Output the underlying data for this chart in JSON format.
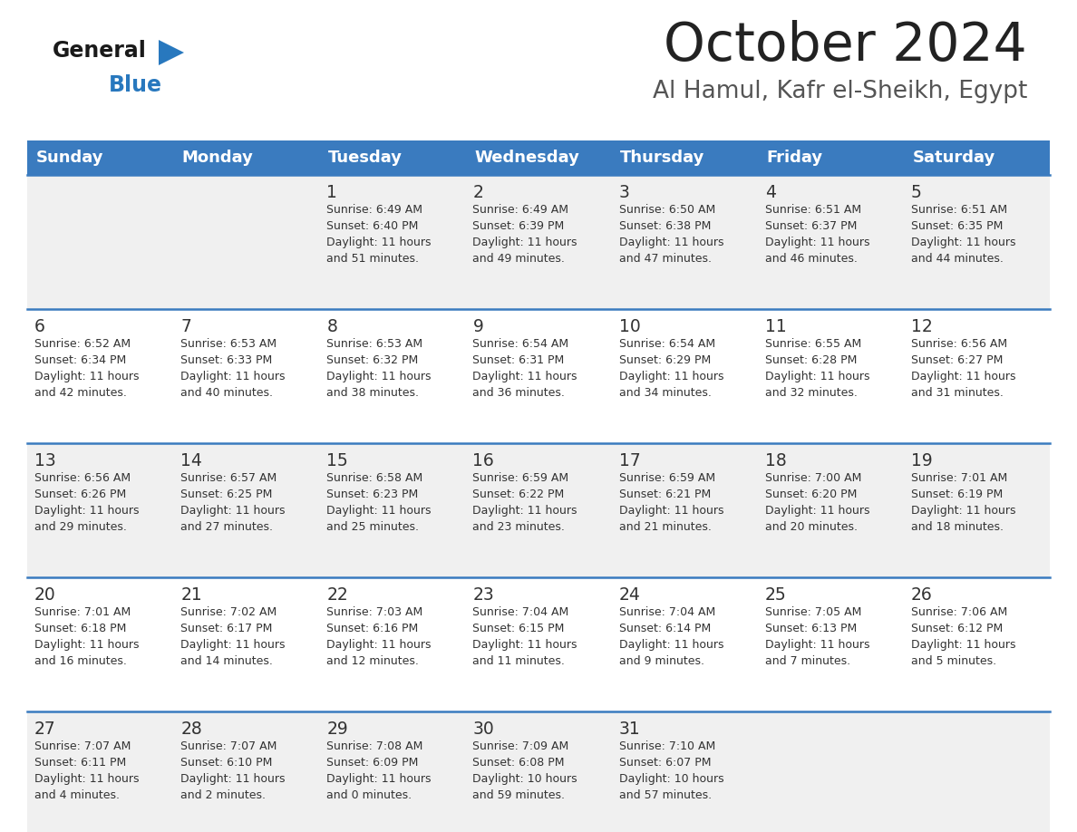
{
  "title": "October 2024",
  "subtitle": "Al Hamul, Kafr el-Sheikh, Egypt",
  "days_of_week": [
    "Sunday",
    "Monday",
    "Tuesday",
    "Wednesday",
    "Thursday",
    "Friday",
    "Saturday"
  ],
  "header_bg": "#3a7bbf",
  "header_text": "#ffffff",
  "row_bg_odd": "#f0f0f0",
  "row_bg_even": "#ffffff",
  "cell_text_color": "#333333",
  "divider_color": "#3a7bbf",
  "title_color": "#222222",
  "subtitle_color": "#555555",
  "logo_general_color": "#1a1a1a",
  "logo_blue_color": "#2878be",
  "calendar": [
    [
      {
        "day": null,
        "sunrise": null,
        "sunset": null,
        "daylight": null
      },
      {
        "day": null,
        "sunrise": null,
        "sunset": null,
        "daylight": null
      },
      {
        "day": 1,
        "sunrise": "6:49 AM",
        "sunset": "6:40 PM",
        "daylight": "11 hours\nand 51 minutes."
      },
      {
        "day": 2,
        "sunrise": "6:49 AM",
        "sunset": "6:39 PM",
        "daylight": "11 hours\nand 49 minutes."
      },
      {
        "day": 3,
        "sunrise": "6:50 AM",
        "sunset": "6:38 PM",
        "daylight": "11 hours\nand 47 minutes."
      },
      {
        "day": 4,
        "sunrise": "6:51 AM",
        "sunset": "6:37 PM",
        "daylight": "11 hours\nand 46 minutes."
      },
      {
        "day": 5,
        "sunrise": "6:51 AM",
        "sunset": "6:35 PM",
        "daylight": "11 hours\nand 44 minutes."
      }
    ],
    [
      {
        "day": 6,
        "sunrise": "6:52 AM",
        "sunset": "6:34 PM",
        "daylight": "11 hours\nand 42 minutes."
      },
      {
        "day": 7,
        "sunrise": "6:53 AM",
        "sunset": "6:33 PM",
        "daylight": "11 hours\nand 40 minutes."
      },
      {
        "day": 8,
        "sunrise": "6:53 AM",
        "sunset": "6:32 PM",
        "daylight": "11 hours\nand 38 minutes."
      },
      {
        "day": 9,
        "sunrise": "6:54 AM",
        "sunset": "6:31 PM",
        "daylight": "11 hours\nand 36 minutes."
      },
      {
        "day": 10,
        "sunrise": "6:54 AM",
        "sunset": "6:29 PM",
        "daylight": "11 hours\nand 34 minutes."
      },
      {
        "day": 11,
        "sunrise": "6:55 AM",
        "sunset": "6:28 PM",
        "daylight": "11 hours\nand 32 minutes."
      },
      {
        "day": 12,
        "sunrise": "6:56 AM",
        "sunset": "6:27 PM",
        "daylight": "11 hours\nand 31 minutes."
      }
    ],
    [
      {
        "day": 13,
        "sunrise": "6:56 AM",
        "sunset": "6:26 PM",
        "daylight": "11 hours\nand 29 minutes."
      },
      {
        "day": 14,
        "sunrise": "6:57 AM",
        "sunset": "6:25 PM",
        "daylight": "11 hours\nand 27 minutes."
      },
      {
        "day": 15,
        "sunrise": "6:58 AM",
        "sunset": "6:23 PM",
        "daylight": "11 hours\nand 25 minutes."
      },
      {
        "day": 16,
        "sunrise": "6:59 AM",
        "sunset": "6:22 PM",
        "daylight": "11 hours\nand 23 minutes."
      },
      {
        "day": 17,
        "sunrise": "6:59 AM",
        "sunset": "6:21 PM",
        "daylight": "11 hours\nand 21 minutes."
      },
      {
        "day": 18,
        "sunrise": "7:00 AM",
        "sunset": "6:20 PM",
        "daylight": "11 hours\nand 20 minutes."
      },
      {
        "day": 19,
        "sunrise": "7:01 AM",
        "sunset": "6:19 PM",
        "daylight": "11 hours\nand 18 minutes."
      }
    ],
    [
      {
        "day": 20,
        "sunrise": "7:01 AM",
        "sunset": "6:18 PM",
        "daylight": "11 hours\nand 16 minutes."
      },
      {
        "day": 21,
        "sunrise": "7:02 AM",
        "sunset": "6:17 PM",
        "daylight": "11 hours\nand 14 minutes."
      },
      {
        "day": 22,
        "sunrise": "7:03 AM",
        "sunset": "6:16 PM",
        "daylight": "11 hours\nand 12 minutes."
      },
      {
        "day": 23,
        "sunrise": "7:04 AM",
        "sunset": "6:15 PM",
        "daylight": "11 hours\nand 11 minutes."
      },
      {
        "day": 24,
        "sunrise": "7:04 AM",
        "sunset": "6:14 PM",
        "daylight": "11 hours\nand 9 minutes."
      },
      {
        "day": 25,
        "sunrise": "7:05 AM",
        "sunset": "6:13 PM",
        "daylight": "11 hours\nand 7 minutes."
      },
      {
        "day": 26,
        "sunrise": "7:06 AM",
        "sunset": "6:12 PM",
        "daylight": "11 hours\nand 5 minutes."
      }
    ],
    [
      {
        "day": 27,
        "sunrise": "7:07 AM",
        "sunset": "6:11 PM",
        "daylight": "11 hours\nand 4 minutes."
      },
      {
        "day": 28,
        "sunrise": "7:07 AM",
        "sunset": "6:10 PM",
        "daylight": "11 hours\nand 2 minutes."
      },
      {
        "day": 29,
        "sunrise": "7:08 AM",
        "sunset": "6:09 PM",
        "daylight": "11 hours\nand 0 minutes."
      },
      {
        "day": 30,
        "sunrise": "7:09 AM",
        "sunset": "6:08 PM",
        "daylight": "10 hours\nand 59 minutes."
      },
      {
        "day": 31,
        "sunrise": "7:10 AM",
        "sunset": "6:07 PM",
        "daylight": "10 hours\nand 57 minutes."
      },
      {
        "day": null,
        "sunrise": null,
        "sunset": null,
        "daylight": null
      },
      {
        "day": null,
        "sunrise": null,
        "sunset": null,
        "daylight": null
      }
    ]
  ]
}
